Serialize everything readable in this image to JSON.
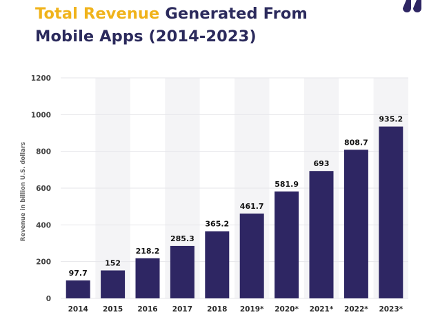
{
  "header": {
    "title_accent": "Total Revenue",
    "title_rest": " Generated From",
    "title_line2": "Mobile Apps (2014-2023)",
    "logo_icon": "brand-drops-icon"
  },
  "colors": {
    "bar": "#2e2663",
    "accent": "#f0b31b",
    "title": "#2b2a5c",
    "band": "#f4f4f6",
    "grid": "#e6e6ea"
  },
  "chart_data": {
    "type": "bar",
    "title": "Total Revenue Generated From Mobile Apps (2014-2023)",
    "xlabel": "",
    "ylabel": "Revenue in billion U.S. dollars",
    "categories": [
      "2014",
      "2015",
      "2016",
      "2017",
      "2018",
      "2019*",
      "2020*",
      "2021*",
      "2022*",
      "2023*"
    ],
    "values": [
      97.7,
      152,
      218.2,
      285.3,
      365.2,
      461.7,
      581.9,
      693,
      808.7,
      935.2
    ],
    "value_labels": [
      "97.7",
      "152",
      "218.2",
      "285.3",
      "365.2",
      "461.7",
      "581.9",
      "693",
      "808.7",
      "935.2"
    ],
    "ylim": [
      0,
      1200
    ],
    "yticks": [
      0,
      200,
      400,
      600,
      800,
      1000,
      1200
    ],
    "grid": true,
    "legend": "none"
  }
}
